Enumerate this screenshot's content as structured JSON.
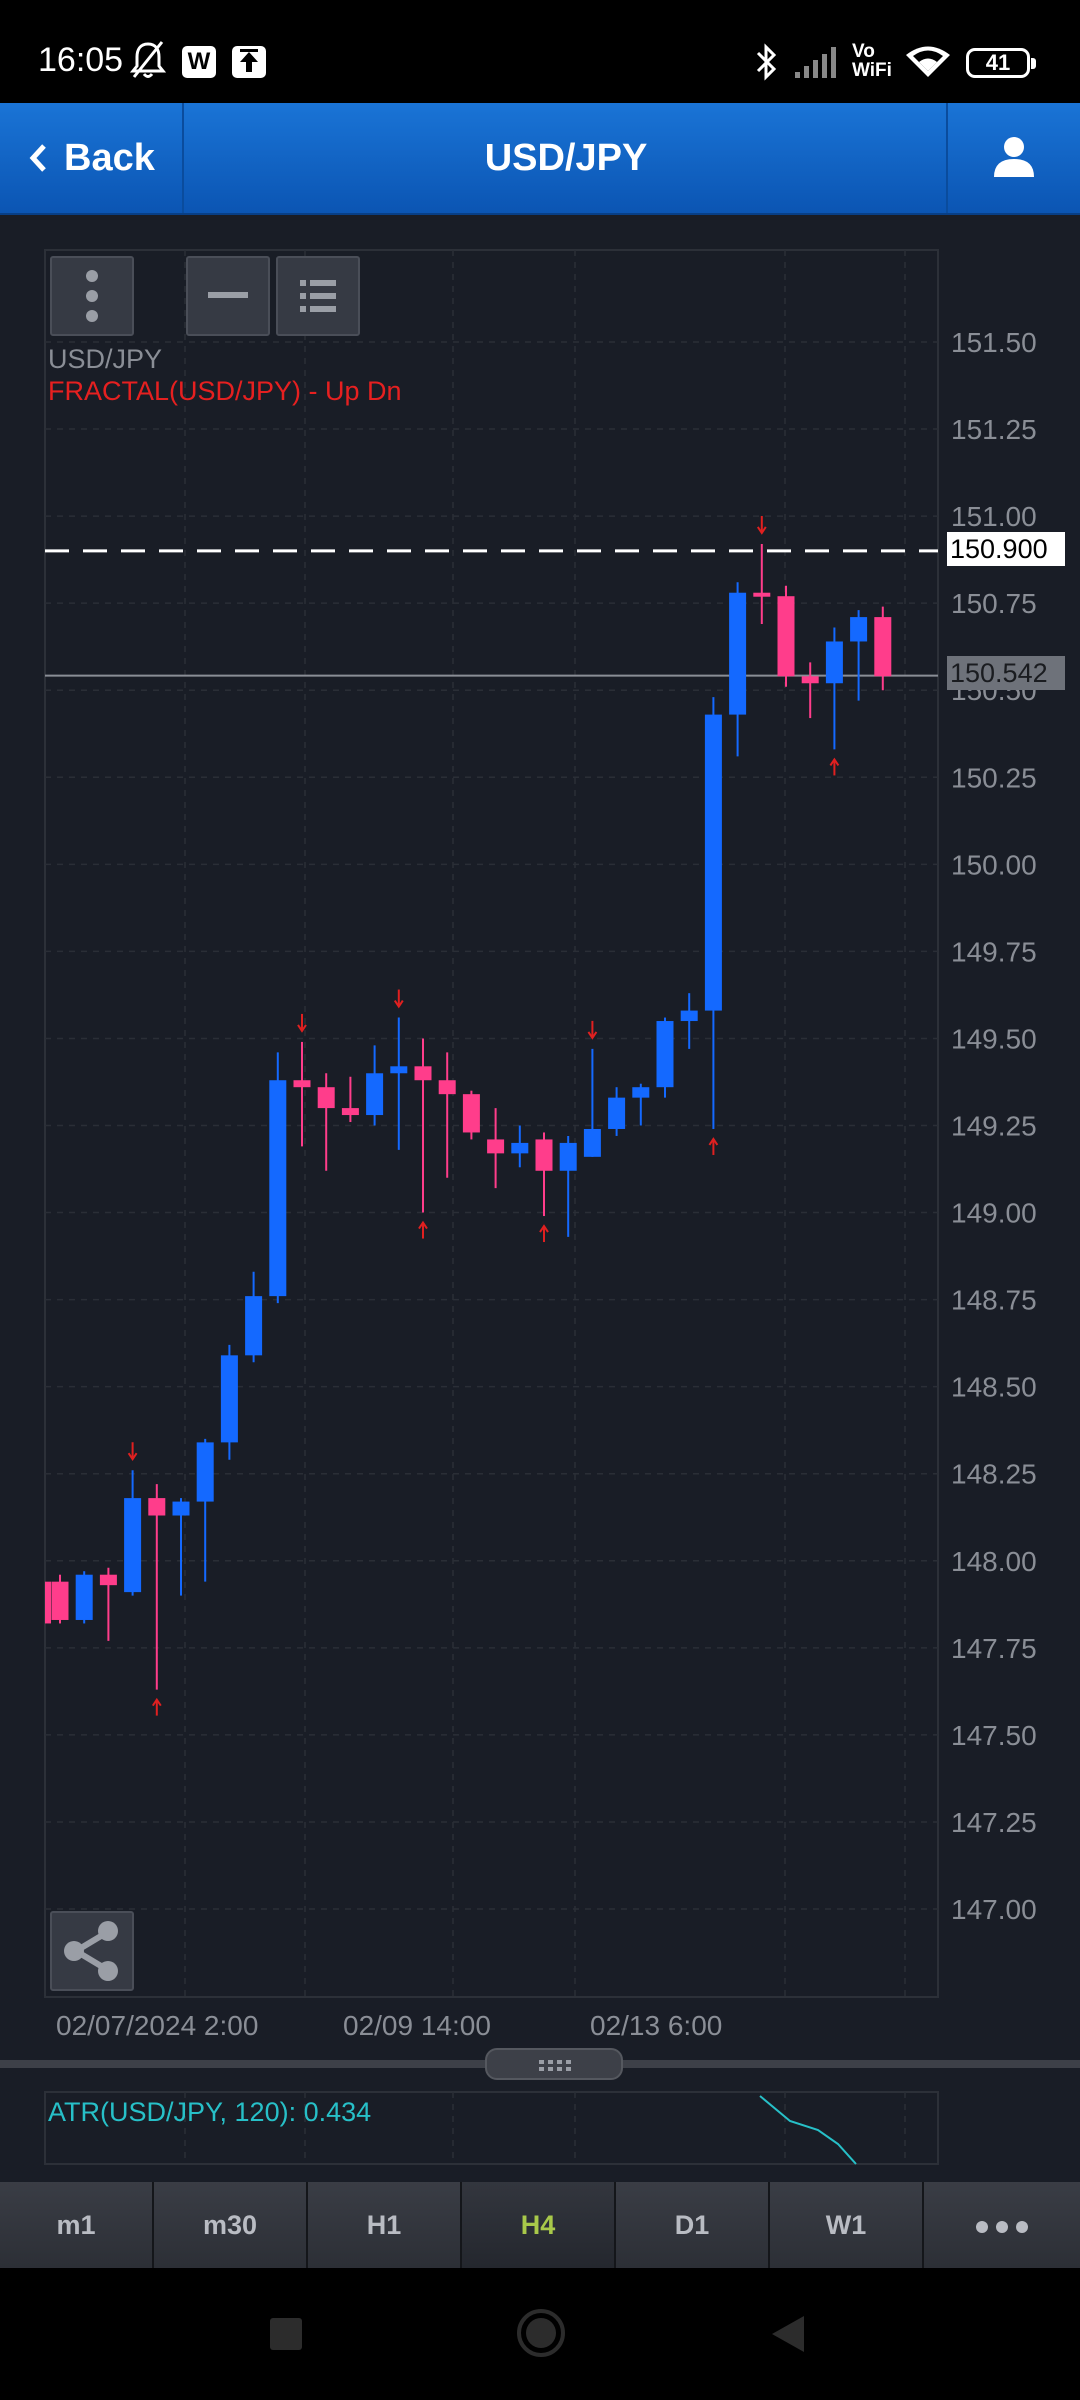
{
  "status_bar": {
    "time": "16:05",
    "icons": [
      "bell-off-icon",
      "w-badge-icon",
      "upload-badge-icon",
      "bluetooth-icon",
      "signal-icon",
      "wifi-icon"
    ],
    "w_badge": "W",
    "vowifi_line1": "Vo",
    "vowifi_line2": "WiFi",
    "battery": "41"
  },
  "header": {
    "back_label": "Back",
    "title": "USD/JPY",
    "accent": "#1565c0"
  },
  "chart": {
    "symbol_legend": "USD/JPY",
    "indicator_legend": "FRACTAL(USD/JPY) - Up Dn",
    "reference_line_price": "150.900",
    "last_price": "150.542"
  },
  "atr": {
    "label": "ATR(USD/JPY, 120): 0.434"
  },
  "timeframes": [
    {
      "label": "m1",
      "active": false
    },
    {
      "label": "m30",
      "active": false
    },
    {
      "label": "H1",
      "active": false
    },
    {
      "label": "H4",
      "active": true
    },
    {
      "label": "D1",
      "active": false
    },
    {
      "label": "W1",
      "active": false
    }
  ],
  "chart_data": {
    "type": "candlestick",
    "y_ticks": [
      "151.50",
      "151.25",
      "151.00",
      "150.75",
      "150.50",
      "150.25",
      "150.00",
      "149.75",
      "149.50",
      "149.25",
      "149.00",
      "148.75",
      "148.50",
      "148.25",
      "148.00",
      "147.75",
      "147.50",
      "147.25",
      "147.00"
    ],
    "x_labels": [
      "02/07/2024 2:00",
      "02/09 14:00",
      "02/13 6:00"
    ],
    "ylim": [
      146.75,
      151.75
    ],
    "grid": true,
    "colors": {
      "up": "#1469ff",
      "down": "#ff3d8b",
      "fractal": "#e02020"
    },
    "reference_line": 150.9,
    "last_price": 150.542,
    "candles": [
      {
        "o": 147.94,
        "h": 147.96,
        "l": 147.82,
        "c": 147.83
      },
      {
        "o": 147.83,
        "h": 147.97,
        "l": 147.82,
        "c": 147.96
      },
      {
        "o": 147.96,
        "h": 147.98,
        "l": 147.77,
        "c": 147.93
      },
      {
        "o": 147.91,
        "h": 148.26,
        "l": 147.9,
        "c": 148.18
      },
      {
        "o": 148.18,
        "h": 148.22,
        "l": 147.63,
        "c": 148.13
      },
      {
        "o": 148.13,
        "h": 148.18,
        "l": 147.9,
        "c": 148.17
      },
      {
        "o": 148.17,
        "h": 148.35,
        "l": 147.94,
        "c": 148.34
      },
      {
        "o": 148.34,
        "h": 148.62,
        "l": 148.29,
        "c": 148.59
      },
      {
        "o": 148.59,
        "h": 148.83,
        "l": 148.57,
        "c": 148.76
      },
      {
        "o": 148.76,
        "h": 149.46,
        "l": 148.74,
        "c": 149.38
      },
      {
        "o": 149.38,
        "h": 149.49,
        "l": 149.19,
        "c": 149.36
      },
      {
        "o": 149.36,
        "h": 149.4,
        "l": 149.12,
        "c": 149.3
      },
      {
        "o": 149.3,
        "h": 149.39,
        "l": 149.26,
        "c": 149.28
      },
      {
        "o": 149.28,
        "h": 149.48,
        "l": 149.25,
        "c": 149.4
      },
      {
        "o": 149.4,
        "h": 149.56,
        "l": 149.18,
        "c": 149.42
      },
      {
        "o": 149.42,
        "h": 149.5,
        "l": 149.0,
        "c": 149.38
      },
      {
        "o": 149.38,
        "h": 149.46,
        "l": 149.1,
        "c": 149.34
      },
      {
        "o": 149.34,
        "h": 149.35,
        "l": 149.21,
        "c": 149.23
      },
      {
        "o": 149.21,
        "h": 149.3,
        "l": 149.07,
        "c": 149.17
      },
      {
        "o": 149.17,
        "h": 149.25,
        "l": 149.13,
        "c": 149.2
      },
      {
        "o": 149.21,
        "h": 149.23,
        "l": 148.99,
        "c": 149.12
      },
      {
        "o": 149.12,
        "h": 149.22,
        "l": 148.93,
        "c": 149.2
      },
      {
        "o": 149.16,
        "h": 149.47,
        "l": 149.16,
        "c": 149.24
      },
      {
        "o": 149.24,
        "h": 149.36,
        "l": 149.22,
        "c": 149.33
      },
      {
        "o": 149.33,
        "h": 149.37,
        "l": 149.25,
        "c": 149.36
      },
      {
        "o": 149.36,
        "h": 149.56,
        "l": 149.33,
        "c": 149.55
      },
      {
        "o": 149.55,
        "h": 149.63,
        "l": 149.47,
        "c": 149.58
      },
      {
        "o": 149.58,
        "h": 150.48,
        "l": 149.24,
        "c": 150.43
      },
      {
        "o": 150.43,
        "h": 150.81,
        "l": 150.31,
        "c": 150.78
      },
      {
        "o": 150.78,
        "h": 150.92,
        "l": 150.69,
        "c": 150.77
      },
      {
        "o": 150.77,
        "h": 150.8,
        "l": 150.51,
        "c": 150.54
      },
      {
        "o": 150.54,
        "h": 150.58,
        "l": 150.42,
        "c": 150.52
      },
      {
        "o": 150.52,
        "h": 150.68,
        "l": 150.33,
        "c": 150.64
      },
      {
        "o": 150.64,
        "h": 150.73,
        "l": 150.47,
        "c": 150.71
      },
      {
        "o": 150.71,
        "h": 150.74,
        "l": 150.5,
        "c": 150.54
      }
    ],
    "fractals_up": [
      4,
      15,
      20,
      27,
      32
    ],
    "fractals_down": [
      3,
      10,
      14,
      22,
      29
    ]
  }
}
